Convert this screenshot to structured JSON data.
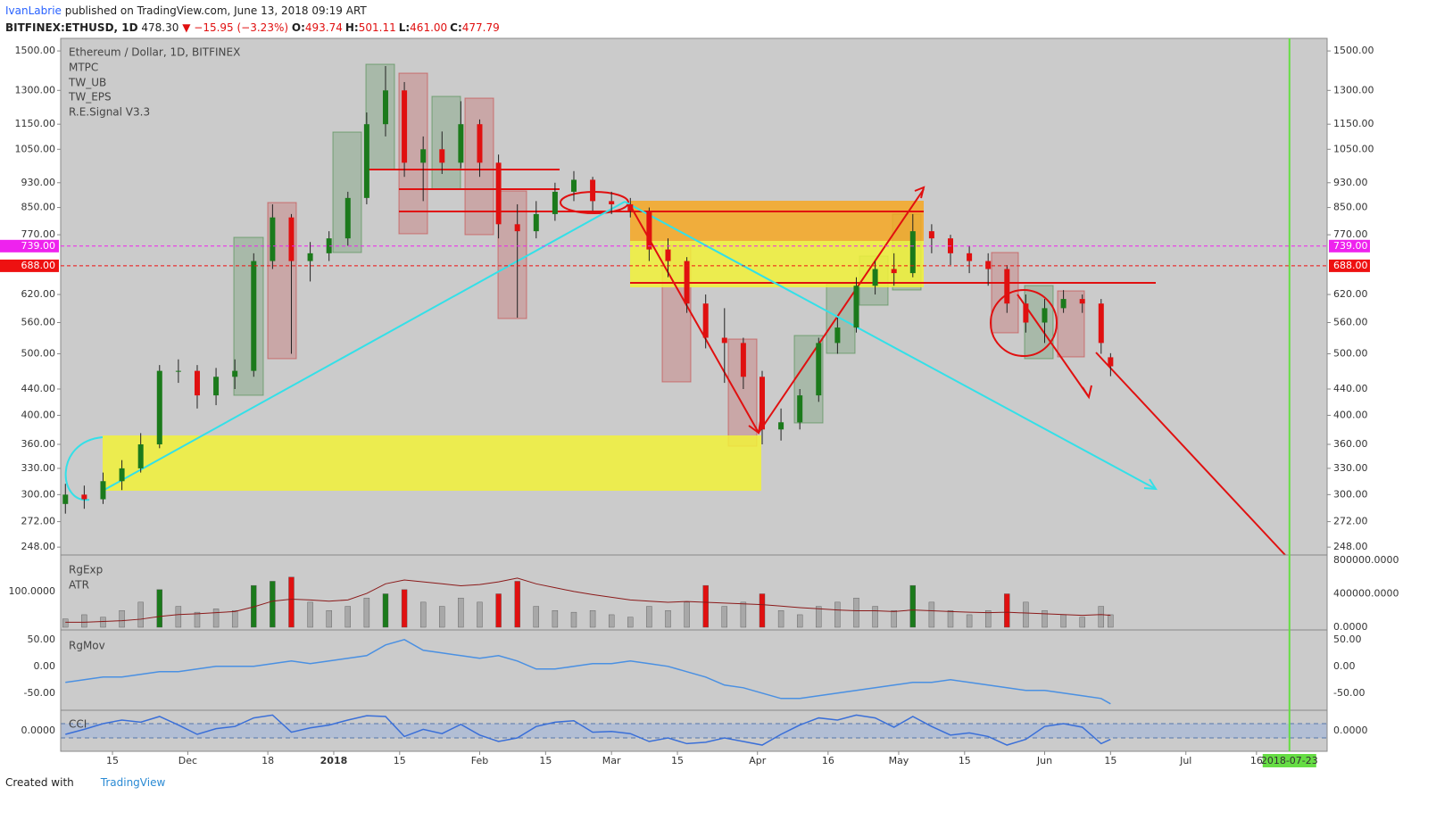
{
  "header": {
    "author": "IvanLabrie",
    "published": " published on TradingView.com, June 13, 2018 09:19 ART",
    "symbol": "BITFINEX:ETHUSD, 1D",
    "last": "478.30",
    "change": "▼ −15.95 (−3.23%)",
    "ohlc": [
      {
        "k": "O:",
        "v": "493.74"
      },
      {
        "k": "H:",
        "v": "501.11"
      },
      {
        "k": "L:",
        "v": "461.00"
      },
      {
        "k": "C:",
        "v": "477.79"
      }
    ]
  },
  "footer": {
    "created": "Created with",
    "brand": "TradingView"
  },
  "chart_data": [
    {
      "type": "candlestick",
      "title": "Ethereum / Dollar, 1D, BITFINEX",
      "indicators": [
        "MTPC",
        "TW_UB",
        "TW_EPS",
        "R.E.Signal V3.3"
      ],
      "x": [
        4,
        8,
        12,
        16,
        20,
        24,
        28,
        32,
        36,
        40,
        44,
        48,
        52,
        56,
        60,
        64,
        68,
        72,
        76,
        80,
        84,
        88,
        92,
        96,
        100,
        104,
        108,
        112,
        116,
        120,
        124,
        128,
        132,
        136,
        140,
        144,
        148,
        152,
        156,
        160,
        164,
        168,
        172,
        176,
        180,
        184,
        188,
        192,
        196,
        200,
        204,
        208,
        212,
        216,
        220,
        224,
        226
      ],
      "open": [
        290,
        300,
        295,
        315,
        330,
        360,
        470,
        470,
        430,
        460,
        470,
        700,
        820,
        700,
        720,
        760,
        880,
        1150,
        1300,
        1000,
        1050,
        1000,
        1150,
        1000,
        800,
        780,
        830,
        900,
        940,
        870,
        860,
        840,
        730,
        700,
        600,
        530,
        520,
        460,
        380,
        390,
        430,
        520,
        550,
        640,
        680,
        670,
        780,
        760,
        720,
        700,
        680,
        600,
        560,
        590,
        610,
        600,
        493.74
      ],
      "high": [
        312,
        310,
        325,
        340,
        375,
        480,
        490,
        480,
        475,
        490,
        720,
        860,
        830,
        750,
        780,
        900,
        1200,
        1420,
        1340,
        1100,
        1120,
        1250,
        1170,
        1030,
        860,
        870,
        930,
        970,
        950,
        900,
        880,
        850,
        760,
        710,
        620,
        590,
        530,
        470,
        410,
        440,
        530,
        570,
        660,
        700,
        720,
        830,
        800,
        770,
        740,
        720,
        690,
        620,
        610,
        630,
        620,
        610,
        501.11
      ],
      "low": [
        280,
        285,
        290,
        305,
        325,
        355,
        450,
        410,
        415,
        440,
        460,
        680,
        500,
        650,
        700,
        740,
        860,
        1100,
        950,
        870,
        960,
        980,
        950,
        760,
        570,
        760,
        810,
        870,
        840,
        830,
        820,
        700,
        660,
        580,
        510,
        450,
        440,
        360,
        365,
        380,
        420,
        500,
        540,
        620,
        640,
        660,
        720,
        690,
        670,
        640,
        580,
        540,
        520,
        580,
        580,
        500,
        461
      ],
      "close": [
        300,
        295,
        315,
        330,
        360,
        470,
        470,
        430,
        460,
        470,
        700,
        820,
        700,
        720,
        760,
        880,
        1150,
        1300,
        1000,
        1050,
        1000,
        1150,
        1000,
        800,
        780,
        830,
        900,
        940,
        870,
        860,
        840,
        730,
        700,
        600,
        530,
        520,
        460,
        380,
        390,
        430,
        520,
        550,
        640,
        680,
        670,
        780,
        760,
        720,
        700,
        680,
        600,
        560,
        590,
        610,
        600,
        520,
        477.79
      ],
      "up_color": "#1b7a1b",
      "down_color": "#e01010",
      "log_scale": true,
      "ylim": [
        241,
        1570
      ],
      "yticks": [
        {
          "value": 248,
          "label": "248.00"
        },
        {
          "value": 272,
          "label": "272.00"
        },
        {
          "value": 300,
          "label": "300.00"
        },
        {
          "value": 330,
          "label": "330.00"
        },
        {
          "value": 360,
          "label": "360.00"
        },
        {
          "value": 400,
          "label": "400.00"
        },
        {
          "value": 440,
          "label": "440.00"
        },
        {
          "value": 500,
          "label": "500.00"
        },
        {
          "value": 560,
          "label": "560.00"
        },
        {
          "value": 620,
          "label": "620.00"
        },
        {
          "value": 770,
          "label": "770.00"
        },
        {
          "value": 850,
          "label": "850.00"
        },
        {
          "value": 930,
          "label": "930.00"
        },
        {
          "value": 1050,
          "label": "1050.00"
        },
        {
          "value": 1150,
          "label": "1150.00"
        },
        {
          "value": 1300,
          "label": "1300.00"
        },
        {
          "value": 1500,
          "label": "1500.00"
        }
      ],
      "xlim": [
        3,
        272
      ],
      "xticks": [
        {
          "value": 14,
          "label": "15"
        },
        {
          "value": 30,
          "label": "Dec"
        },
        {
          "value": 47,
          "label": "18"
        },
        {
          "value": 61,
          "label": "2018"
        },
        {
          "value": 75,
          "label": "15"
        },
        {
          "value": 92,
          "label": "Feb"
        },
        {
          "value": 106,
          "label": "15"
        },
        {
          "value": 120,
          "label": "Mar"
        },
        {
          "value": 134,
          "label": "15"
        },
        {
          "value": 151,
          "label": "Apr"
        },
        {
          "value": 166,
          "label": "16"
        },
        {
          "value": 181,
          "label": "May"
        },
        {
          "value": 195,
          "label": "15"
        },
        {
          "value": 212,
          "label": "Jun"
        },
        {
          "value": 226,
          "label": "15"
        },
        {
          "value": 242,
          "label": "Jul"
        },
        {
          "value": 257,
          "label": "16"
        }
      ],
      "x_marker": {
        "value": 264,
        "label": "2018-07-23",
        "color": "#66dd44"
      },
      "levels": [
        {
          "value": 739,
          "label": "739.00",
          "color": "#ee22ee"
        },
        {
          "value": 688,
          "label": "688.00",
          "color": "#ee1111"
        }
      ]
    },
    {
      "type": "bar",
      "series": [
        {
          "name": "RgExp",
          "axis": "y2",
          "values": [
            100000,
            150000,
            120000,
            200000,
            300000,
            450000,
            250000,
            180000,
            220000,
            200000,
            500000,
            550000,
            600000,
            300000,
            200000,
            250000,
            350000,
            400000,
            450000,
            300000,
            250000,
            350000,
            300000,
            400000,
            550000,
            250000,
            200000,
            180000,
            200000,
            150000,
            120000,
            250000,
            200000,
            300000,
            500000,
            250000,
            300000,
            400000,
            200000,
            150000,
            250000,
            300000,
            350000,
            250000,
            200000,
            500000,
            300000,
            200000,
            150000,
            200000,
            400000,
            300000,
            200000,
            150000,
            120000,
            250000,
            150000
          ]
        },
        {
          "name": "ATR",
          "color": "#8b1a1a",
          "values": [
            20,
            20,
            22,
            24,
            28,
            35,
            40,
            42,
            45,
            48,
            60,
            75,
            80,
            78,
            75,
            78,
            95,
            120,
            130,
            125,
            120,
            115,
            118,
            125,
            135,
            120,
            110,
            100,
            92,
            85,
            78,
            75,
            72,
            74,
            72,
            70,
            68,
            66,
            62,
            58,
            55,
            52,
            50,
            50,
            48,
            52,
            50,
            48,
            46,
            45,
            46,
            44,
            42,
            40,
            38,
            40,
            38
          ]
        }
      ],
      "ylim": [
        0,
        195
      ],
      "yticks": [
        {
          "value": 100,
          "label": "100.0000"
        }
      ],
      "y2lim": [
        -32000,
        864000
      ],
      "y2ticks": [
        {
          "value": 800000,
          "label": "800000.0000"
        },
        {
          "value": 400000,
          "label": "400000.0000"
        },
        {
          "value": 0,
          "label": "0.0000"
        }
      ],
      "neutral_color": "#a8a8a8"
    },
    {
      "type": "line",
      "series": [
        {
          "name": "RgMov",
          "color": "#4a90e2",
          "values": [
            -30,
            -25,
            -20,
            -20,
            -15,
            -10,
            -10,
            -5,
            0,
            0,
            0,
            5,
            10,
            5,
            10,
            15,
            20,
            40,
            50,
            30,
            25,
            20,
            15,
            20,
            10,
            -5,
            -5,
            0,
            5,
            5,
            10,
            5,
            0,
            -10,
            -20,
            -35,
            -40,
            -50,
            -60,
            -60,
            -55,
            -50,
            -45,
            -40,
            -35,
            -30,
            -30,
            -25,
            -30,
            -35,
            -40,
            -45,
            -45,
            -50,
            -55,
            -60,
            -70
          ]
        }
      ],
      "ylim": [
        -82,
        68
      ],
      "yticks": [
        {
          "value": 50,
          "label": "50.00"
        },
        {
          "value": 0,
          "label": "0.00"
        },
        {
          "value": -50,
          "label": "-50.00"
        }
      ]
    },
    {
      "type": "line",
      "series": [
        {
          "name": "CCI",
          "color": "#3a6fd8",
          "values": [
            -50,
            20,
            100,
            150,
            120,
            200,
            80,
            -50,
            30,
            60,
            180,
            220,
            -20,
            40,
            80,
            150,
            210,
            200,
            -80,
            20,
            -40,
            90,
            -60,
            -150,
            -100,
            60,
            120,
            140,
            -20,
            -10,
            -40,
            -150,
            -100,
            -180,
            -160,
            -100,
            -150,
            -200,
            -50,
            80,
            180,
            150,
            220,
            180,
            50,
            200,
            60,
            -60,
            -30,
            -80,
            -200,
            -120,
            60,
            100,
            50,
            -180,
            -120
          ]
        }
      ],
      "ylim": [
        -287,
        287
      ],
      "yticks": [
        {
          "value": 0,
          "label": "0.0000"
        }
      ],
      "bands": [
        -100,
        100
      ]
    }
  ]
}
